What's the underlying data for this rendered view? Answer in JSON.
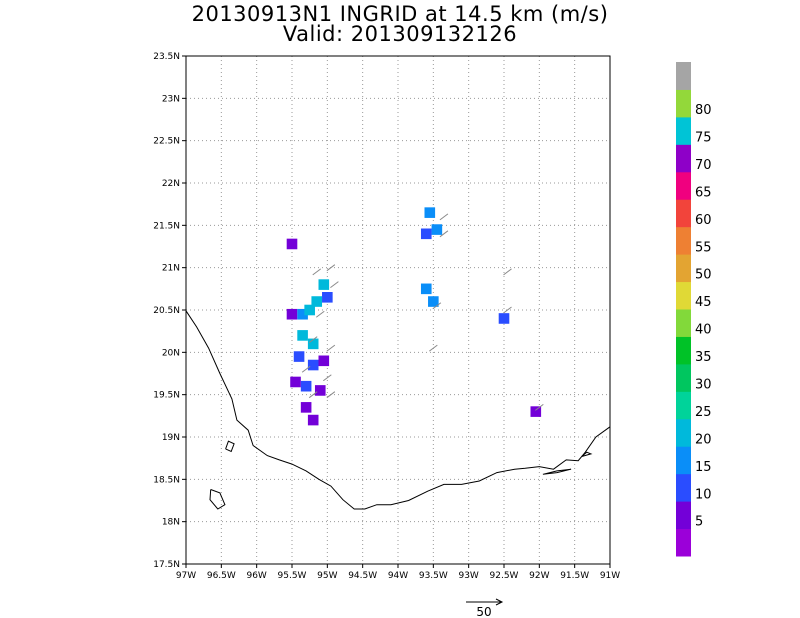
{
  "title": "20130913N1 INGRID at 14.5 km (m/s)",
  "subtitle": "Valid: 201309132126",
  "map": {
    "lon_range": [
      -97,
      -91
    ],
    "lat_range": [
      17.5,
      23.5
    ],
    "x_ticks": [
      {
        "v": -97,
        "label": "97W"
      },
      {
        "v": -96.5,
        "label": "96.5W"
      },
      {
        "v": -96,
        "label": "96W"
      },
      {
        "v": -95.5,
        "label": "95.5W"
      },
      {
        "v": -95,
        "label": "95W"
      },
      {
        "v": -94.5,
        "label": "94.5W"
      },
      {
        "v": -94,
        "label": "94W"
      },
      {
        "v": -93.5,
        "label": "93.5W"
      },
      {
        "v": -93,
        "label": "93W"
      },
      {
        "v": -92.5,
        "label": "92.5W"
      },
      {
        "v": -92,
        "label": "92W"
      },
      {
        "v": -91.5,
        "label": "91.5W"
      },
      {
        "v": -91,
        "label": "91W"
      }
    ],
    "y_ticks": [
      {
        "v": 17.5,
        "label": "17.5N"
      },
      {
        "v": 18,
        "label": "18N"
      },
      {
        "v": 18.5,
        "label": "18.5N"
      },
      {
        "v": 19,
        "label": "19N"
      },
      {
        "v": 19.5,
        "label": "19.5N"
      },
      {
        "v": 20,
        "label": "20N"
      },
      {
        "v": 20.5,
        "label": "20.5N"
      },
      {
        "v": 21,
        "label": "21N"
      },
      {
        "v": 21.5,
        "label": "21.5N"
      },
      {
        "v": 22,
        "label": "22N"
      },
      {
        "v": 22.5,
        "label": "22.5N"
      },
      {
        "v": 23,
        "label": "23N"
      },
      {
        "v": 23.5,
        "label": "23.5N"
      }
    ],
    "grid": "dotted",
    "coastline": [
      [
        -97.0,
        20.49
      ],
      [
        -96.85,
        20.3
      ],
      [
        -96.68,
        20.05
      ],
      [
        -96.52,
        19.75
      ],
      [
        -96.35,
        19.45
      ],
      [
        -96.28,
        19.2
      ],
      [
        -96.12,
        19.08
      ],
      [
        -96.05,
        18.9
      ],
      [
        -95.85,
        18.78
      ],
      [
        -95.68,
        18.73
      ],
      [
        -95.5,
        18.68
      ],
      [
        -95.3,
        18.6
      ],
      [
        -95.12,
        18.5
      ],
      [
        -94.95,
        18.42
      ],
      [
        -94.78,
        18.26
      ],
      [
        -94.62,
        18.15
      ],
      [
        -94.47,
        18.15
      ],
      [
        -94.3,
        18.2
      ],
      [
        -94.1,
        18.2
      ],
      [
        -93.85,
        18.25
      ],
      [
        -93.58,
        18.36
      ],
      [
        -93.35,
        18.44
      ],
      [
        -93.1,
        18.44
      ],
      [
        -92.85,
        18.48
      ],
      [
        -92.6,
        18.58
      ],
      [
        -92.35,
        18.62
      ],
      [
        -92.2,
        18.63
      ],
      [
        -92.0,
        18.65
      ],
      [
        -91.8,
        18.62
      ],
      [
        -91.62,
        18.73
      ],
      [
        -91.45,
        18.72
      ],
      [
        -91.35,
        18.82
      ],
      [
        -91.2,
        19.0
      ],
      [
        -91.0,
        19.12
      ]
    ],
    "islands": [
      [
        [
          -96.44,
          18.86
        ],
        [
          -96.36,
          18.83
        ],
        [
          -96.32,
          18.92
        ],
        [
          -96.4,
          18.95
        ],
        [
          -96.44,
          18.86
        ]
      ],
      [
        [
          -96.65,
          18.38
        ],
        [
          -96.52,
          18.34
        ],
        [
          -96.45,
          18.2
        ],
        [
          -96.55,
          18.15
        ],
        [
          -96.66,
          18.26
        ],
        [
          -96.65,
          18.38
        ]
      ],
      [
        [
          -91.95,
          18.56
        ],
        [
          -91.75,
          18.6
        ],
        [
          -91.55,
          18.62
        ],
        [
          -91.75,
          18.58
        ],
        [
          -91.95,
          18.56
        ]
      ],
      [
        [
          -91.4,
          18.77
        ],
        [
          -91.33,
          18.82
        ],
        [
          -91.27,
          18.8
        ],
        [
          -91.4,
          18.77
        ]
      ]
    ]
  },
  "colorbar": {
    "levels": [
      "5",
      "10",
      "15",
      "20",
      "25",
      "30",
      "35",
      "40",
      "45",
      "50",
      "55",
      "60",
      "65",
      "70",
      "75",
      "80"
    ],
    "colors": [
      "#9b00d9",
      "#7300d8",
      "#2a4dff",
      "#0a8ef8",
      "#00b9db",
      "#00d39a",
      "#00c65f",
      "#00c227",
      "#82d93a",
      "#e0d936",
      "#e3a432",
      "#ee8033",
      "#f2443b",
      "#f0007f",
      "#8e00c8",
      "#00c4d6",
      "#93d83a",
      "#a5a5a5"
    ]
  },
  "vector_key": {
    "value": "50"
  },
  "chart_data": {
    "type": "heatmap",
    "title": "20130913N1 INGRID at 14.5 km (m/s)",
    "subtitle": "Valid: 201309132126",
    "xlabel": "",
    "ylabel": "",
    "xlim": [
      -97,
      -91
    ],
    "ylim": [
      17.5,
      23.5
    ],
    "cells": [
      {
        "lon": -95.5,
        "lat": 21.28,
        "value": 5
      },
      {
        "lon": -95.5,
        "lat": 20.45,
        "value": 5
      },
      {
        "lon": -95.35,
        "lat": 20.45,
        "value": 15
      },
      {
        "lon": -95.25,
        "lat": 20.5,
        "value": 20
      },
      {
        "lon": -95.15,
        "lat": 20.6,
        "value": 20
      },
      {
        "lon": -95.05,
        "lat": 20.8,
        "value": 20
      },
      {
        "lon": -95.0,
        "lat": 20.65,
        "value": 10
      },
      {
        "lon": -95.35,
        "lat": 20.2,
        "value": 20
      },
      {
        "lon": -95.2,
        "lat": 20.1,
        "value": 20
      },
      {
        "lon": -95.4,
        "lat": 19.95,
        "value": 10
      },
      {
        "lon": -95.2,
        "lat": 19.85,
        "value": 10
      },
      {
        "lon": -95.05,
        "lat": 19.9,
        "value": 5
      },
      {
        "lon": -95.45,
        "lat": 19.65,
        "value": 5
      },
      {
        "lon": -95.3,
        "lat": 19.6,
        "value": 10
      },
      {
        "lon": -95.1,
        "lat": 19.55,
        "value": 5
      },
      {
        "lon": -95.3,
        "lat": 19.35,
        "value": 5
      },
      {
        "lon": -95.2,
        "lat": 19.2,
        "value": 5
      },
      {
        "lon": -93.55,
        "lat": 21.65,
        "value": 15
      },
      {
        "lon": -93.45,
        "lat": 21.45,
        "value": 15
      },
      {
        "lon": -93.6,
        "lat": 21.4,
        "value": 10
      },
      {
        "lon": -93.6,
        "lat": 20.75,
        "value": 15
      },
      {
        "lon": -93.5,
        "lat": 20.6,
        "value": 15
      },
      {
        "lon": -92.5,
        "lat": 20.4,
        "value": 10
      },
      {
        "lon": -92.05,
        "lat": 19.3,
        "value": 5
      }
    ]
  }
}
